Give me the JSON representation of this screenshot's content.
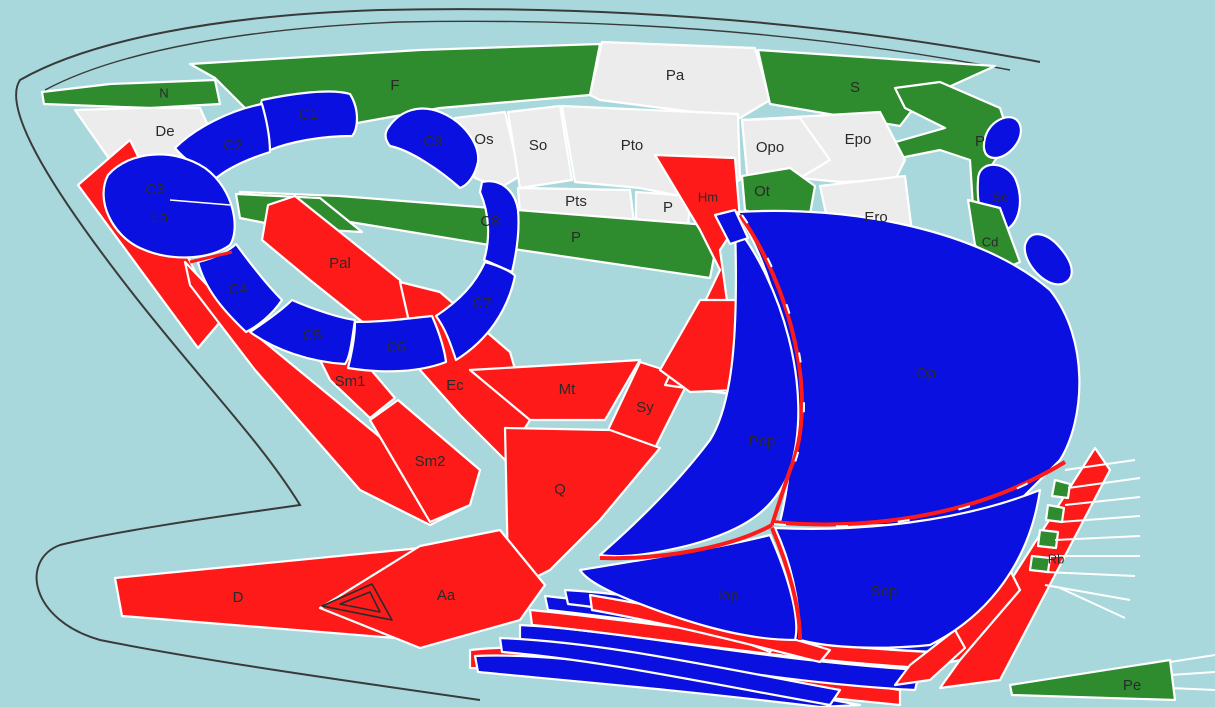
{
  "colors": {
    "background": "#a8d8dc",
    "dermal_green": "#2e8b2e",
    "red_bone": "#ff1a1a",
    "blue_bone": "#0a10e0",
    "white_bone": "#ececec",
    "outline": "#3a3a3a"
  },
  "labels": {
    "N": "N",
    "F": "F",
    "Pa": "Pa",
    "S": "S",
    "De": "De",
    "C1": "C1",
    "C2": "C2",
    "C3": "C3",
    "La": "La",
    "C4": "C4",
    "C5": "C5",
    "C6": "C6",
    "C7": "C7",
    "C8": "C8",
    "C9": "C9",
    "Os": "Os",
    "So": "So",
    "Pto": "Pto",
    "Opo": "Opo",
    "Epo": "Epo",
    "Pts": "Pts",
    "P_small": "P",
    "P": "P",
    "Ot": "Ot",
    "Ero": "Ero",
    "Hm": "Hm",
    "Pt": "P",
    "Sc": "Sc",
    "Cd": "Cd",
    "Pal": "Pal",
    "Sm1": "Sm1",
    "Sm2": "Sm2",
    "Ec": "Ec",
    "Mt": "Mt",
    "Sy": "Sy",
    "Q": "Q",
    "Pop": "Pop",
    "Op": "Op",
    "Iop": "Iop",
    "Sop": "Sop",
    "D": "D",
    "Aa": "Aa",
    "Rb": "Rb",
    "Pe": "Pe"
  }
}
